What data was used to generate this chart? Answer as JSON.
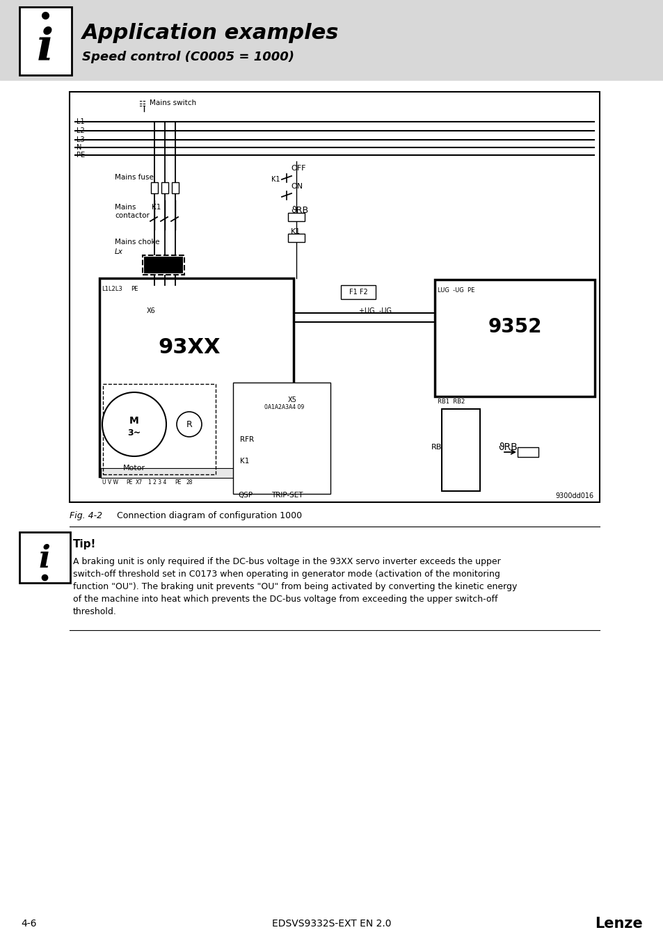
{
  "bg_color": "#ffffff",
  "header_bg": "#d8d8d8",
  "header_title": "Application examples",
  "header_subtitle": "Speed control (C0005 = 1000)",
  "fig_caption_label": "Fig. 4-2",
  "fig_caption_text": "Connection diagram of configuration 1000",
  "tip_title": "Tip!",
  "tip_body": "A braking unit is only required if the DC-bus voltage in the 93XX servo inverter exceeds the upper\nswitch-off threshold set in C0173 when operating in generator mode (activation of the monitoring\nfunction \"OU\"). The braking unit prevents \"OU\" from being activated by converting the kinetic energy\nof the machine into heat which prevents the DC-bus voltage from exceeding the upper switch-off\nthreshold.",
  "footer_left": "4-6",
  "footer_center": "EDSVS9332S-EXT EN 2.0",
  "footer_right": "Lenze",
  "diagram_ref": "9300dd016",
  "diagram_93xx_label": "93XX",
  "diagram_9352_label": "9352",
  "diagram_labels": {
    "mains_switch": "Mains switch",
    "L1": "L1",
    "L2": "L2",
    "L3": "L3",
    "N": "N",
    "PE": "PE",
    "mains_fuse": "Mains fuse",
    "mains_contactor": "Mains\ncontactor",
    "K1_contactor": "K1",
    "mains_choke": "Mains choke",
    "Lx": "Lx",
    "OFF": "OFF",
    "ON": "ON",
    "K1_relay": "K1",
    "9RB_label": "ϑRB",
    "K1_small": "K1",
    "F1F2": "F1 F2",
    "plus_UG": "+UG",
    "minus_UG": "-UG",
    "LUG": "LUG",
    "minus_UG2": "-UG",
    "PE2": "PE",
    "L1L2L3": "L1L2L3",
    "PE3": "PE",
    "X6": "X6",
    "X5": "X5",
    "X7": "X7",
    "UVW": "U V W",
    "PE4": "PE",
    "RB_label": "RB",
    "RB1RB2": "RB1 RB2",
    "9RB_right": "ϑRB",
    "RFR": "RFR",
    "K1_bottom": "K1",
    "QSP": "QSP",
    "TRIP_SET": "TRIP-SET",
    "Motor": "Motor",
    "M_label": "M\n3~"
  }
}
